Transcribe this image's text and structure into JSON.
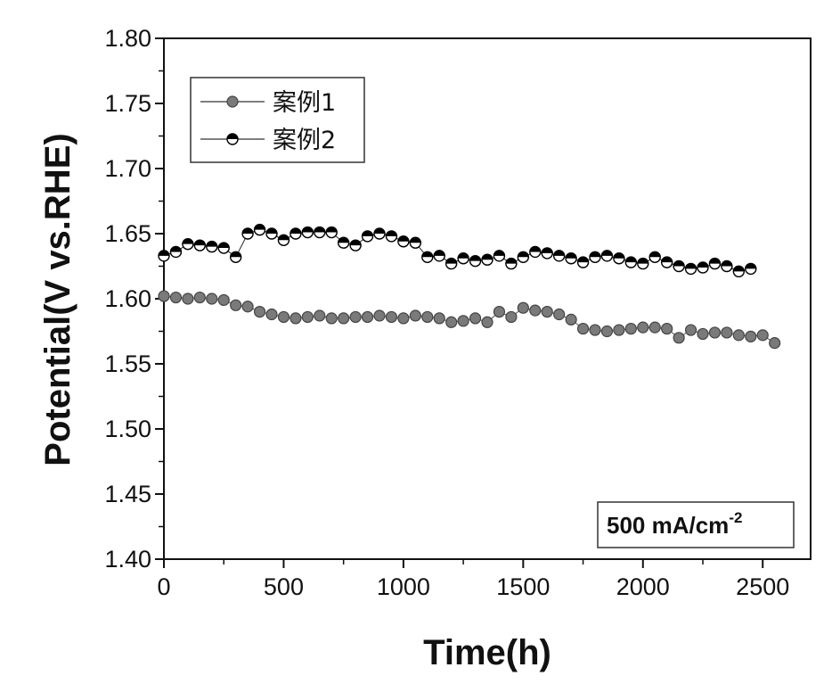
{
  "chart_data": {
    "type": "scatter",
    "title": "",
    "xlabel": "Time(h)",
    "ylabel": "Potential(V vs.RHE)",
    "xlim": [
      0,
      2700
    ],
    "ylim": [
      1.4,
      1.8
    ],
    "xticks": [
      0,
      500,
      1000,
      1500,
      2000,
      2500
    ],
    "xtick_labels": [
      "0",
      "500",
      "1000",
      "1500",
      "2000",
      "2500"
    ],
    "yticks": [
      1.4,
      1.45,
      1.5,
      1.55,
      1.6,
      1.65,
      1.7,
      1.75,
      1.8
    ],
    "ytick_labels": [
      "1.40",
      "1.45",
      "1.50",
      "1.55",
      "1.60",
      "1.65",
      "1.70",
      "1.75",
      "1.80"
    ],
    "legend_position": "top-left",
    "annotation": {
      "text": "500 mA/cm",
      "superscript": "-2",
      "position": "bottom-right"
    },
    "series": [
      {
        "name": "案例1",
        "marker": "filled-circle",
        "color": "#777777",
        "x": [
          0,
          50,
          100,
          150,
          200,
          250,
          300,
          350,
          400,
          450,
          500,
          550,
          600,
          650,
          700,
          750,
          800,
          850,
          900,
          950,
          1000,
          1050,
          1100,
          1150,
          1200,
          1250,
          1300,
          1350,
          1400,
          1450,
          1500,
          1550,
          1600,
          1650,
          1700,
          1750,
          1800,
          1850,
          1900,
          1950,
          2000,
          2050,
          2100,
          2150,
          2200,
          2250,
          2300,
          2350,
          2400,
          2450,
          2500,
          2550
        ],
        "y": [
          1.602,
          1.601,
          1.6,
          1.601,
          1.6,
          1.599,
          1.595,
          1.594,
          1.59,
          1.588,
          1.586,
          1.585,
          1.586,
          1.587,
          1.585,
          1.585,
          1.586,
          1.586,
          1.587,
          1.586,
          1.585,
          1.587,
          1.586,
          1.585,
          1.582,
          1.583,
          1.585,
          1.582,
          1.59,
          1.586,
          1.593,
          1.591,
          1.59,
          1.588,
          1.584,
          1.577,
          1.576,
          1.575,
          1.576,
          1.577,
          1.578,
          1.578,
          1.577,
          1.57,
          1.576,
          1.573,
          1.574,
          1.574,
          1.572,
          1.571,
          1.572,
          1.566
        ]
      },
      {
        "name": "案例2",
        "marker": "half-filled-circle",
        "color": "#000000",
        "x": [
          0,
          50,
          100,
          150,
          200,
          250,
          300,
          350,
          400,
          450,
          500,
          550,
          600,
          650,
          700,
          750,
          800,
          850,
          900,
          950,
          1000,
          1050,
          1100,
          1150,
          1200,
          1250,
          1300,
          1350,
          1400,
          1450,
          1500,
          1550,
          1600,
          1650,
          1700,
          1750,
          1800,
          1850,
          1900,
          1950,
          2000,
          2050,
          2100,
          2150,
          2200,
          2250,
          2300,
          2350,
          2400,
          2450
        ],
        "y": [
          1.633,
          1.636,
          1.642,
          1.641,
          1.64,
          1.639,
          1.632,
          1.65,
          1.653,
          1.65,
          1.645,
          1.65,
          1.651,
          1.651,
          1.651,
          1.643,
          1.641,
          1.648,
          1.65,
          1.648,
          1.644,
          1.643,
          1.632,
          1.633,
          1.627,
          1.631,
          1.629,
          1.63,
          1.633,
          1.627,
          1.632,
          1.636,
          1.635,
          1.633,
          1.631,
          1.628,
          1.632,
          1.633,
          1.631,
          1.628,
          1.627,
          1.632,
          1.628,
          1.625,
          1.623,
          1.624,
          1.627,
          1.625,
          1.621,
          1.623
        ]
      }
    ]
  }
}
